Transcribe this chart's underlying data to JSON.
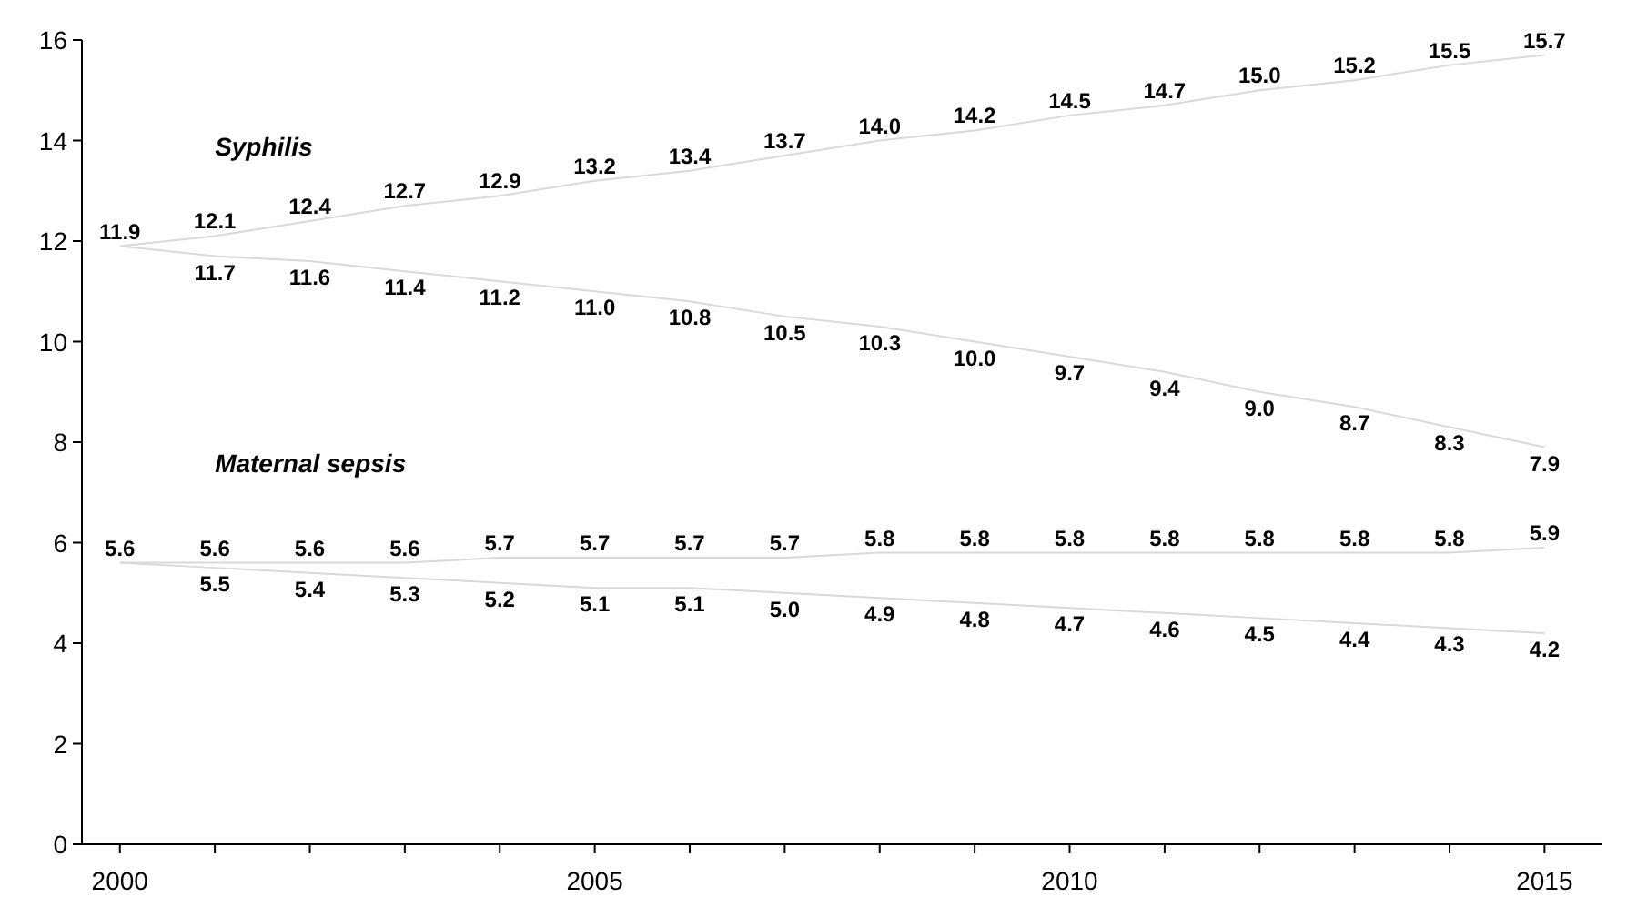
{
  "chart_data": {
    "type": "line",
    "x": [
      2000,
      2001,
      2002,
      2003,
      2004,
      2005,
      2006,
      2007,
      2008,
      2009,
      2010,
      2011,
      2012,
      2013,
      2014,
      2015
    ],
    "series": [
      {
        "color": "#d9d9d9",
        "values": [
          11.9,
          12.1,
          12.4,
          12.7,
          12.9,
          13.2,
          13.4,
          13.7,
          14.0,
          14.2,
          14.5,
          14.7,
          15.0,
          15.2,
          15.5,
          15.7
        ],
        "value_labels": [
          "11.9",
          "12.1",
          "12.4",
          "12.7",
          "12.9",
          "13.2",
          "13.4",
          "13.7",
          "14.0",
          "14.2",
          "14.5",
          "14.7",
          "15.0",
          "15.2",
          "15.5",
          "15.7"
        ]
      },
      {
        "color": "#d9d9d9",
        "values": [
          11.9,
          11.7,
          11.6,
          11.4,
          11.2,
          11.0,
          10.8,
          10.5,
          10.3,
          10.0,
          9.7,
          9.4,
          9.0,
          8.7,
          8.3,
          7.9
        ],
        "value_labels": [
          null,
          "11.7",
          "11.6",
          "11.4",
          "11.2",
          "11.0",
          "10.8",
          "10.5",
          "10.3",
          "10.0",
          "9.7",
          "9.4",
          "9.0",
          "8.7",
          "8.3",
          "7.9"
        ]
      },
      {
        "color": "#d9d9d9",
        "values": [
          5.6,
          5.6,
          5.6,
          5.6,
          5.7,
          5.7,
          5.7,
          5.7,
          5.8,
          5.8,
          5.8,
          5.8,
          5.8,
          5.8,
          5.8,
          5.9
        ],
        "value_labels": [
          "5.6",
          "5.6",
          "5.6",
          "5.6",
          "5.7",
          "5.7",
          "5.7",
          "5.7",
          "5.8",
          "5.8",
          "5.8",
          "5.8",
          "5.8",
          "5.8",
          "5.8",
          "5.9"
        ]
      },
      {
        "color": "#d9d9d9",
        "values": [
          5.6,
          5.5,
          5.4,
          5.3,
          5.2,
          5.1,
          5.1,
          5.0,
          4.9,
          4.8,
          4.7,
          4.6,
          4.5,
          4.4,
          4.3,
          4.2
        ],
        "value_labels": [
          null,
          "5.5",
          "5.4",
          "5.3",
          "5.2",
          "5.1",
          "5.1",
          "5.0",
          "4.9",
          "4.8",
          "4.7",
          "4.6",
          "4.5",
          "4.4",
          "4.3",
          "4.2"
        ]
      }
    ],
    "xlim": [
      1999.6,
      2015.6
    ],
    "xticks": [
      2000,
      {
        "value": 2001,
        "label": null
      },
      {
        "value": 2002,
        "label": null
      },
      {
        "value": 2003,
        "label": null
      },
      {
        "value": 2004,
        "label": null
      },
      2005,
      {
        "value": 2006,
        "label": null
      },
      {
        "value": 2007,
        "label": null
      },
      {
        "value": 2008,
        "label": null
      },
      {
        "value": 2009,
        "label": null
      },
      2010,
      {
        "value": 2011,
        "label": null
      },
      {
        "value": 2012,
        "label": null
      },
      {
        "value": 2013,
        "label": null
      },
      {
        "value": 2014,
        "label": null
      },
      2015
    ],
    "ylim": [
      0,
      16
    ],
    "yticks": [
      0,
      2,
      4,
      6,
      8,
      10,
      12,
      14,
      16
    ],
    "grid": false,
    "annotations": [
      "Syphilis",
      "Maternal sepsis"
    ]
  }
}
